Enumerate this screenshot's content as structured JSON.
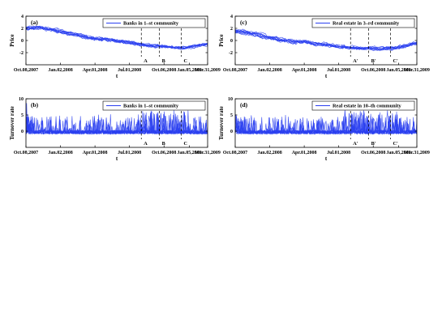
{
  "colors": {
    "line": "#2a3ff0",
    "axis": "#000000",
    "background": "#ffffff"
  },
  "chart_data": [
    {
      "type": "line",
      "panel": "(a)",
      "ylabel": "Price",
      "xlabel": "t",
      "ylim": [
        -4,
        4
      ],
      "yticks": [
        "-2",
        "0",
        "2",
        "4"
      ],
      "xticks": [
        "Oct.08,2007",
        "Jan.02,2008",
        "Apr.01,2008",
        "Jul.01,2008",
        "Oct.06,2008",
        "Jan.05,2009",
        "Mar.31,2009"
      ],
      "legend": "Banks in 1–st community",
      "legend_position": "top-right",
      "n_series": 10,
      "events": [
        "A",
        "B",
        "C"
      ],
      "trend_x": [
        0,
        0.08,
        0.16,
        0.24,
        0.32,
        0.4,
        0.48,
        0.56,
        0.64,
        0.72,
        0.8,
        0.88,
        0.95,
        1.0
      ],
      "trend_y": [
        1.9,
        2.0,
        1.6,
        1.0,
        0.5,
        0.2,
        -0.1,
        -0.4,
        -0.8,
        -1.0,
        -1.2,
        -1.3,
        -0.9,
        -0.6
      ],
      "spread": 0.35,
      "noise": 0.3
    },
    {
      "type": "line",
      "panel": "(c)",
      "ylabel": "Price",
      "xlabel": "t",
      "ylim": [
        -4,
        4
      ],
      "yticks": [
        "-2",
        "0",
        "2",
        "4"
      ],
      "xticks": [
        "Oct.08,2007",
        "Jan.02,2008",
        "Apr.01,2008",
        "Jul.01,2008",
        "Oct.06,2008",
        "Jan.05,2009",
        "Mar.31,2009"
      ],
      "legend": "Real estate in 3–rd community",
      "legend_position": "top-right",
      "n_series": 10,
      "events": [
        "A'",
        "B'",
        "C'"
      ],
      "trend_x": [
        0,
        0.08,
        0.16,
        0.24,
        0.32,
        0.4,
        0.48,
        0.56,
        0.64,
        0.72,
        0.8,
        0.88,
        0.95,
        1.0
      ],
      "trend_y": [
        2.0,
        1.7,
        1.1,
        0.6,
        0.2,
        0.0,
        -0.3,
        -0.6,
        -0.9,
        -1.0,
        -1.1,
        -1.0,
        -0.6,
        -0.3
      ],
      "spread": 0.55,
      "noise": 0.32
    },
    {
      "type": "line",
      "panel": "(b)",
      "ylabel": "Turnover rate",
      "xlabel": "t",
      "ylim": [
        -5,
        10
      ],
      "yticks": [
        "0",
        "5",
        "10"
      ],
      "xticks": [
        "Oct.08,2007",
        "Jan.02,2008",
        "Apr.01,2008",
        "Jul.01,2008",
        "Oct.06,2008",
        "Jan.05,2009",
        "Mar.31,2009"
      ],
      "legend": "Banks in 1–st community",
      "legend_position": "top-right",
      "n_series": 10,
      "events": [
        "A",
        "B",
        "C"
      ],
      "baseline": -0.3,
      "spike_rate": 0.1,
      "spike_max": 6.5
    },
    {
      "type": "line",
      "panel": "(d)",
      "ylabel": "Turnover rate",
      "xlabel": "t",
      "ylim": [
        -5,
        10
      ],
      "yticks": [
        "0",
        "5",
        "10"
      ],
      "xticks": [
        "Oct.08,2007",
        "Jan.02,2008",
        "Apr.01,2008",
        "Jul.01,2008",
        "Oct.06,2008",
        "Jan.05,2009",
        "Mar.31,2009"
      ],
      "legend": "Real estate in 10–th community",
      "legend_position": "top-right",
      "n_series": 10,
      "events": [
        "A'",
        "B'",
        "C'"
      ],
      "baseline": -0.3,
      "spike_rate": 0.12,
      "spike_max": 6.5
    }
  ]
}
